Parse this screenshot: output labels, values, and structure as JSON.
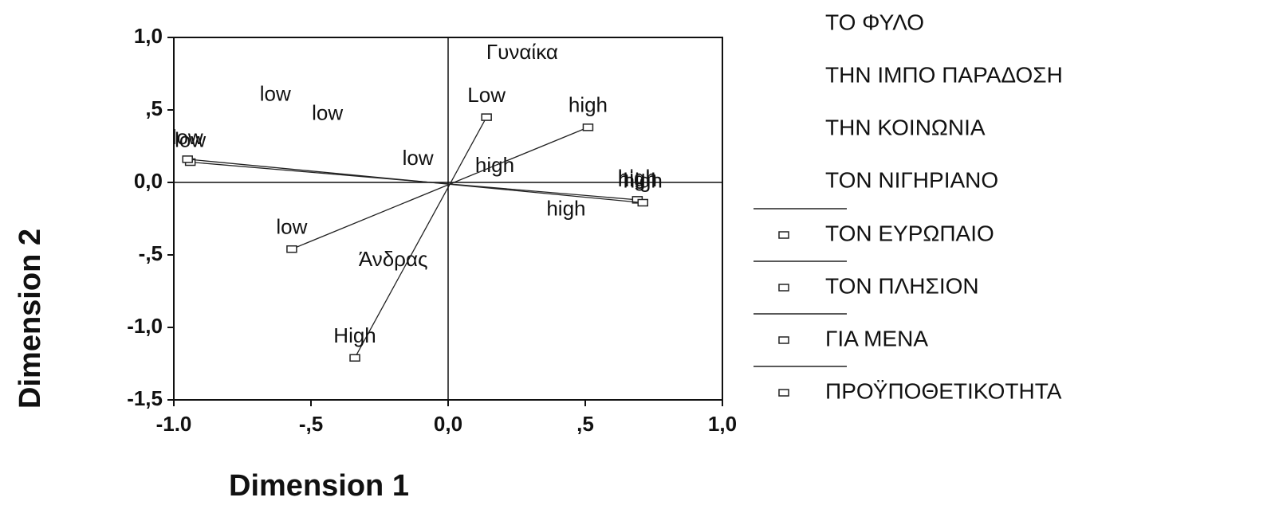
{
  "chart_data": {
    "type": "scatter",
    "xlabel": "Dimension 1",
    "ylabel": "Dimension 2",
    "xlim": [
      -1.0,
      1.0
    ],
    "xticks": [
      {
        "value": -1.0,
        "label": "-1.0"
      },
      {
        "value": -0.5,
        "label": "-,5"
      },
      {
        "value": 0,
        "label": "0,0"
      },
      {
        "value": 0.5,
        "label": ",5"
      },
      {
        "value": 1.0,
        "label": "1,0"
      }
    ],
    "ylim": [
      -1.5,
      1.0
    ],
    "yticks": [
      {
        "value": 1.0,
        "label": "1,0"
      },
      {
        "value": 0.5,
        "label": ",5"
      },
      {
        "value": 0,
        "label": "0,0"
      },
      {
        "value": -0.5,
        "label": "-,5"
      },
      {
        "value": -1.0,
        "label": "-1,0"
      },
      {
        "value": -1.5,
        "label": "-1,5"
      }
    ],
    "series": [
      {
        "name": "ΤΟ ΦΥΛΟ",
        "marker": false,
        "labels": [
          "Γυναίκα",
          "Άνδρας"
        ],
        "x": [
          0.27,
          -0.2
        ],
        "y": [
          0.89,
          -0.54
        ]
      },
      {
        "name": "ΤΗΝ ΙΜΠΟ ΠΑΡΑΔΟΣΗ",
        "marker": false,
        "labels": [
          "low",
          "high"
        ],
        "x": [
          -0.63,
          0.43
        ],
        "y": [
          0.6,
          -0.19
        ]
      },
      {
        "name": "ΤΗΝ ΚΟΙΝΩΝΙΑ",
        "marker": false,
        "labels": [
          "low",
          "high"
        ],
        "x": [
          -0.44,
          0.17
        ],
        "y": [
          0.47,
          0.11
        ]
      },
      {
        "name": "ΤΟΝ ΝΙΓΗΡΙΑΝΟ",
        "marker": false,
        "labels": [
          "low",
          "high"
        ],
        "x": [
          -0.11,
          0.69
        ],
        "y": [
          0.16,
          0.01
        ]
      },
      {
        "name": "ΤΟΝ ΕΥΡΩΠΑΙΟ",
        "marker": true,
        "labels": [
          "low",
          "high"
        ],
        "x": [
          -0.94,
          0.69
        ],
        "y": [
          0.14,
          -0.12
        ]
      },
      {
        "name": "ΤΟΝ ΠΛΗΣΙΟΝ",
        "marker": true,
        "labels": [
          "low",
          "high"
        ],
        "x": [
          -0.95,
          0.71
        ],
        "y": [
          0.16,
          -0.14
        ]
      },
      {
        "name": "ΓΙΑ ΜΕΝΑ",
        "marker": true,
        "labels": [
          "low",
          "high"
        ],
        "x": [
          -0.57,
          0.51
        ],
        "y": [
          -0.46,
          0.38
        ]
      },
      {
        "name": "ΠΡΟΫΠΟΘΕΤΙΚΟΤΗΤΑ",
        "marker": true,
        "labels": [
          "Low",
          "High"
        ],
        "x": [
          0.14,
          -0.34
        ],
        "y": [
          0.45,
          -1.21
        ]
      }
    ]
  }
}
